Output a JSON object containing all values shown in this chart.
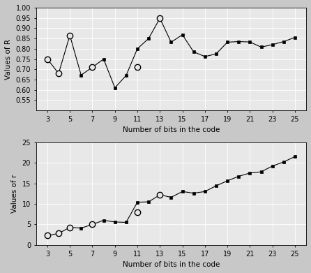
{
  "top": {
    "x_line": [
      3,
      4,
      5,
      6,
      7,
      8,
      9,
      10,
      11,
      12,
      13,
      14,
      15,
      16,
      17,
      18,
      19,
      20,
      21,
      22,
      23,
      24,
      25
    ],
    "y_line": [
      0.75,
      0.68,
      0.865,
      0.672,
      0.71,
      0.75,
      0.61,
      0.67,
      0.8,
      0.85,
      0.948,
      0.832,
      0.868,
      0.785,
      0.762,
      0.775,
      0.832,
      0.835,
      0.833,
      0.808,
      0.82,
      0.835,
      0.855
    ],
    "x_circle": [
      3,
      4,
      5,
      7,
      11,
      13
    ],
    "y_circle": [
      0.75,
      0.68,
      0.865,
      0.71,
      0.71,
      0.948
    ],
    "ylabel": "Values of R",
    "xlabel": "Number of bits in the code",
    "ylim": [
      0.5,
      1.0
    ],
    "yticks": [
      0.55,
      0.6,
      0.65,
      0.7,
      0.75,
      0.8,
      0.85,
      0.9,
      0.95,
      1.0
    ],
    "xticks": [
      3,
      5,
      7,
      9,
      11,
      13,
      15,
      17,
      19,
      21,
      23,
      25
    ]
  },
  "bottom": {
    "x_line": [
      3,
      4,
      5,
      6,
      7,
      8,
      9,
      10,
      11,
      12,
      13,
      14,
      15,
      16,
      17,
      18,
      19,
      20,
      21,
      22,
      23,
      24,
      25
    ],
    "y_line": [
      2.3,
      2.8,
      4.3,
      4.1,
      5.0,
      6.0,
      5.6,
      5.5,
      10.4,
      10.5,
      12.2,
      11.6,
      13.0,
      12.6,
      13.0,
      14.4,
      15.6,
      16.7,
      17.5,
      17.8,
      19.2,
      20.2,
      21.5
    ],
    "x_circle": [
      3,
      4,
      5,
      7,
      11,
      13
    ],
    "y_circle": [
      2.3,
      2.8,
      4.3,
      5.0,
      8.0,
      12.2
    ],
    "ylabel": "Values of r",
    "xlabel": "Number of bits in the code",
    "ylim": [
      0,
      25
    ],
    "yticks": [
      0,
      5,
      10,
      15,
      20,
      25
    ],
    "xticks": [
      3,
      5,
      7,
      9,
      11,
      13,
      15,
      17,
      19,
      21,
      23,
      25
    ]
  },
  "line_color": "#000000",
  "dot_marker": "s",
  "dot_markersize": 2.5,
  "circle_marker": "o",
  "circle_size": 6,
  "linewidth": 0.8,
  "plot_bg": "#e8e8e8",
  "fig_bg": "#c8c8c8",
  "grid_color": "#ffffff",
  "font_size": 7.5
}
